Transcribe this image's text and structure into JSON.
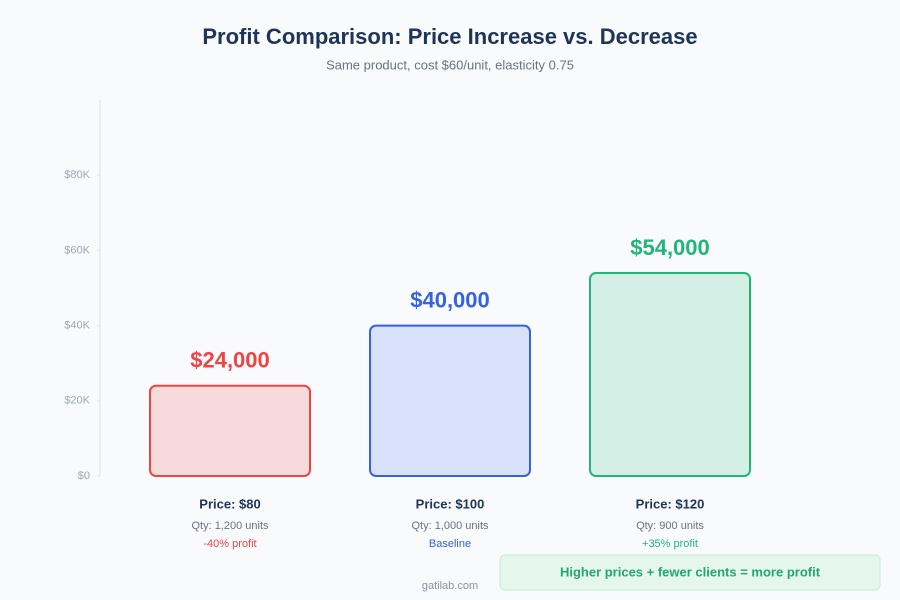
{
  "chart_data": {
    "type": "bar",
    "title": "Profit Comparison: Price Increase vs. Decrease",
    "subtitle": "Same product, cost $60/unit, elasticity 0.75",
    "categories": [
      "Price: $80",
      "Price: $100",
      "Price: $120"
    ],
    "quantities": [
      "Qty: 1,200 units",
      "Qty: 1,000 units",
      "Qty: 900 units"
    ],
    "notes": [
      "-40% profit",
      "Baseline",
      "+35% profit"
    ],
    "values": [
      24000,
      40000,
      54000
    ],
    "value_labels": [
      "$24,000",
      "$40,000",
      "$54,000"
    ],
    "colors": [
      "#ef4444",
      "#3563e0",
      "#22b57a"
    ],
    "ylim": [
      0,
      100000
    ],
    "yticks": [
      {
        "value": 0,
        "label": "$0"
      },
      {
        "value": 20000,
        "label": "$20K"
      },
      {
        "value": 40000,
        "label": "$40K"
      },
      {
        "value": 60000,
        "label": "$60K"
      },
      {
        "value": 80000,
        "label": "$80K"
      }
    ],
    "grid": false,
    "callout": "Higher prices + fewer clients = more profit",
    "footer": "gatilab.com"
  }
}
